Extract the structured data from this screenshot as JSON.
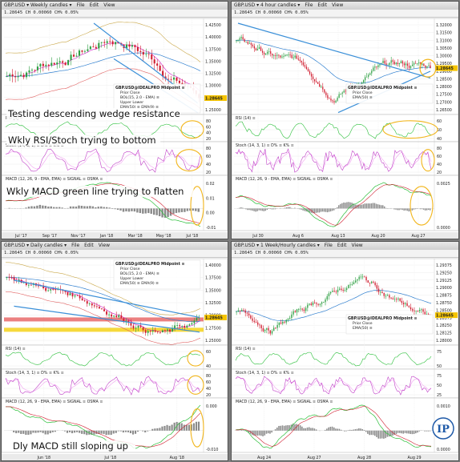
{
  "panels": [
    {
      "id": "weekly",
      "window_title": "GBP.USD ▾ Weekly candles ▾",
      "menu": [
        "File",
        "Edit",
        "View"
      ],
      "quote": "1.28645 CH 0.00060 CH% 0.05%",
      "legend_title": "GBP.USD@IDEALPRO Midpoint ≡",
      "legend_lines": [
        "Prior Close",
        "BOL(15, 2.0 - EMA) ≡",
        "Upper   Lower",
        "EMA(50) ≡   EMA(9) ≡"
      ],
      "annotations": [
        "Testing descending wedge resistance",
        "Wkly RSI/Stoch trying to bottom",
        "Wkly MACD green line trying to flatten"
      ],
      "price_ticks": [
        "1.42500",
        "1.40000",
        "1.37500",
        "1.35000",
        "1.32500",
        "1.30000",
        "1.27500",
        "1.25000"
      ],
      "last_price": "1.28645",
      "rsi_label": "RSI (3) ≡",
      "rsi_ticks": [
        "80",
        "60",
        "40",
        "20"
      ],
      "stoch_label": "Stoch (14, 3, 1) ≡   D% ≡   K% ≡",
      "stoch_ticks": [
        "80",
        "60",
        "40",
        "20"
      ],
      "macd_label": "MACD (12, 26, 9 - EMA, EMA) ≡   SIGNAL ≡   OSMA ≡",
      "macd_ticks": [
        "0.02",
        "0.01",
        "0.00",
        "-0.01"
      ],
      "time_labels": [
        "Jul '17",
        "Sep '17",
        "Nov '17",
        "Jan '18",
        "Mar '18",
        "May '18",
        "Jul '18"
      ]
    },
    {
      "id": "4hour",
      "window_title": "GBP.USD ▾ 4 hour candles ▾",
      "menu": [
        "File",
        "Edit",
        "View"
      ],
      "quote": "1.28645 CH 0.00060 CH% 0.05%",
      "legend_title": "GBP.USD@IDEALPRO Midpoint ≡",
      "legend_lines": [
        "Prior Close",
        "EMA(50) ≡"
      ],
      "price_ticks": [
        "1.32000",
        "1.31500",
        "1.31000",
        "1.30500",
        "1.30000",
        "1.29500",
        "1.29000",
        "1.28500",
        "1.28000",
        "1.27500",
        "1.27000",
        "1.26500"
      ],
      "last_price": "1.28645",
      "rsi_label": "RSI (14) ≡",
      "rsi_ticks": [
        "60",
        "50",
        "40"
      ],
      "stoch_label": "Stoch (14, 3, 1) ≡   D% ≡   K% ≡",
      "stoch_ticks": [
        "80",
        "60",
        "40",
        "20"
      ],
      "macd_label": "MACD (12, 26, 9 - EMA, EMA) ≡   SIGNAL ≡   OSMA ≡",
      "macd_ticks": [
        "0.0025",
        "0.0000"
      ],
      "time_labels": [
        "Jul 30",
        "Aug 6",
        "Aug 13",
        "Aug 20",
        "Aug 27"
      ]
    },
    {
      "id": "daily",
      "window_title": "GBP.USD ▾ Daily candles ▾",
      "menu": [
        "File",
        "Edit",
        "View"
      ],
      "quote": "1.28645 CH 0.00060 CH% 0.05%",
      "legend_title": "GBP.USD@IDEALPRO Midpoint ≡",
      "legend_lines": [
        "Prior Close",
        "BOL(15, 2.0 - EMA) ≡",
        "Upper   Lower",
        "EMA(50) ≡   EMA(9) ≡"
      ],
      "annotations": [
        "Dly MACD still sloping up"
      ],
      "price_ticks": [
        "1.40000",
        "1.37500",
        "1.35000",
        "1.32500",
        "1.30000",
        "1.27500",
        "1.25000"
      ],
      "last_price": "1.28645",
      "rsi_label": "RSI (14) ≡",
      "rsi_ticks": [
        "60",
        "40"
      ],
      "stoch_label": "Stoch (14, 3, 1) ≡   D% ≡   K% ≡",
      "stoch_ticks": [
        "80",
        "60",
        "40",
        "20"
      ],
      "macd_label": "MACD (12, 26, 9 - EMA, EMA) ≡   SIGNAL ≡   OSMA ≡",
      "macd_ticks": [
        "0.000",
        "-0.010"
      ],
      "time_labels": [
        "Jun '18",
        "Jul '18",
        "Aug '18"
      ]
    },
    {
      "id": "hourly",
      "window_title": "GBP.USD ▾ 1 Week/Hourly candles ▾",
      "menu": [
        "File",
        "Edit",
        "View"
      ],
      "quote": "1.28645 CH 0.00060 CH% 0.05%",
      "legend_title": "GBP.USD@IDEALPRO Midpoint ≡",
      "legend_lines": [
        "Prior Close",
        "EMA(50) ≡"
      ],
      "price_ticks": [
        "1.29375",
        "1.29250",
        "1.29125",
        "1.29000",
        "1.28875",
        "1.28750",
        "1.28500",
        "1.28375",
        "1.28250",
        "1.28125",
        "1.28000"
      ],
      "last_price": "1.28645",
      "rsi_label": "RSI (14) ≡",
      "rsi_ticks": [
        "75",
        "50"
      ],
      "stoch_label": "Stoch (14, 3, 1) ≡   D% ≡   K% ≡",
      "stoch_ticks": [
        "75",
        "50",
        "25"
      ],
      "macd_label": "MACD (12, 26, 9 - EMA, EMA) ≡   SIGNAL ≡   OSMA ≡",
      "macd_ticks": [
        "0.0010",
        "0.0000"
      ],
      "time_labels": [
        "Aug 24",
        "Aug 27",
        "Aug 28",
        "Aug 29"
      ]
    }
  ],
  "colors": {
    "up": "#2ea043",
    "down": "#d01c2e",
    "ema50": "#2f7fcf",
    "ema9": "#d11cc8",
    "upper": "#caa84a",
    "lower": "#e06060",
    "trend": "#3a8fd8",
    "highlight": "#f2b51a",
    "rsi": "#2bbf3a",
    "stochD": "#f0a0f0",
    "stochK": "#c040c8",
    "macd": "#2bbf3a",
    "signal": "#d01c2e",
    "osma": "#8a8a8a",
    "resistance_band": "#e86a6a",
    "support_band": "#f4d21a"
  },
  "logo": {
    "letters": "IP"
  }
}
